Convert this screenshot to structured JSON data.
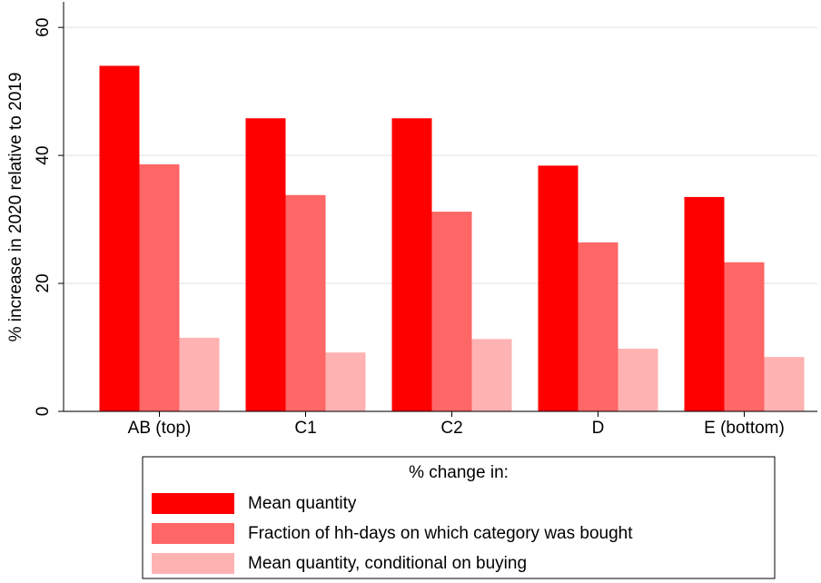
{
  "chart_data": {
    "type": "bar",
    "y_label": "% increase in 2020 relative to 2019",
    "legend_title": "% change in:",
    "categories": [
      "AB (top)",
      "C1",
      "C2",
      "D",
      "E (bottom)"
    ],
    "series": [
      {
        "name": "Mean quantity",
        "color": "#ff0000",
        "values": [
          54.0,
          45.8,
          45.8,
          38.4,
          33.5
        ]
      },
      {
        "name": "Fraction of hh-days on which category was bought",
        "color": "#ff6666",
        "values": [
          38.6,
          33.8,
          31.2,
          26.4,
          23.3
        ]
      },
      {
        "name": "Mean quantity, conditional on buying",
        "color": "#ffb2b2",
        "values": [
          11.5,
          9.2,
          11.3,
          9.8,
          8.5
        ]
      }
    ],
    "ylim": [
      0,
      64
    ],
    "yticks": [
      0,
      20,
      40,
      60
    ],
    "grid": true
  }
}
